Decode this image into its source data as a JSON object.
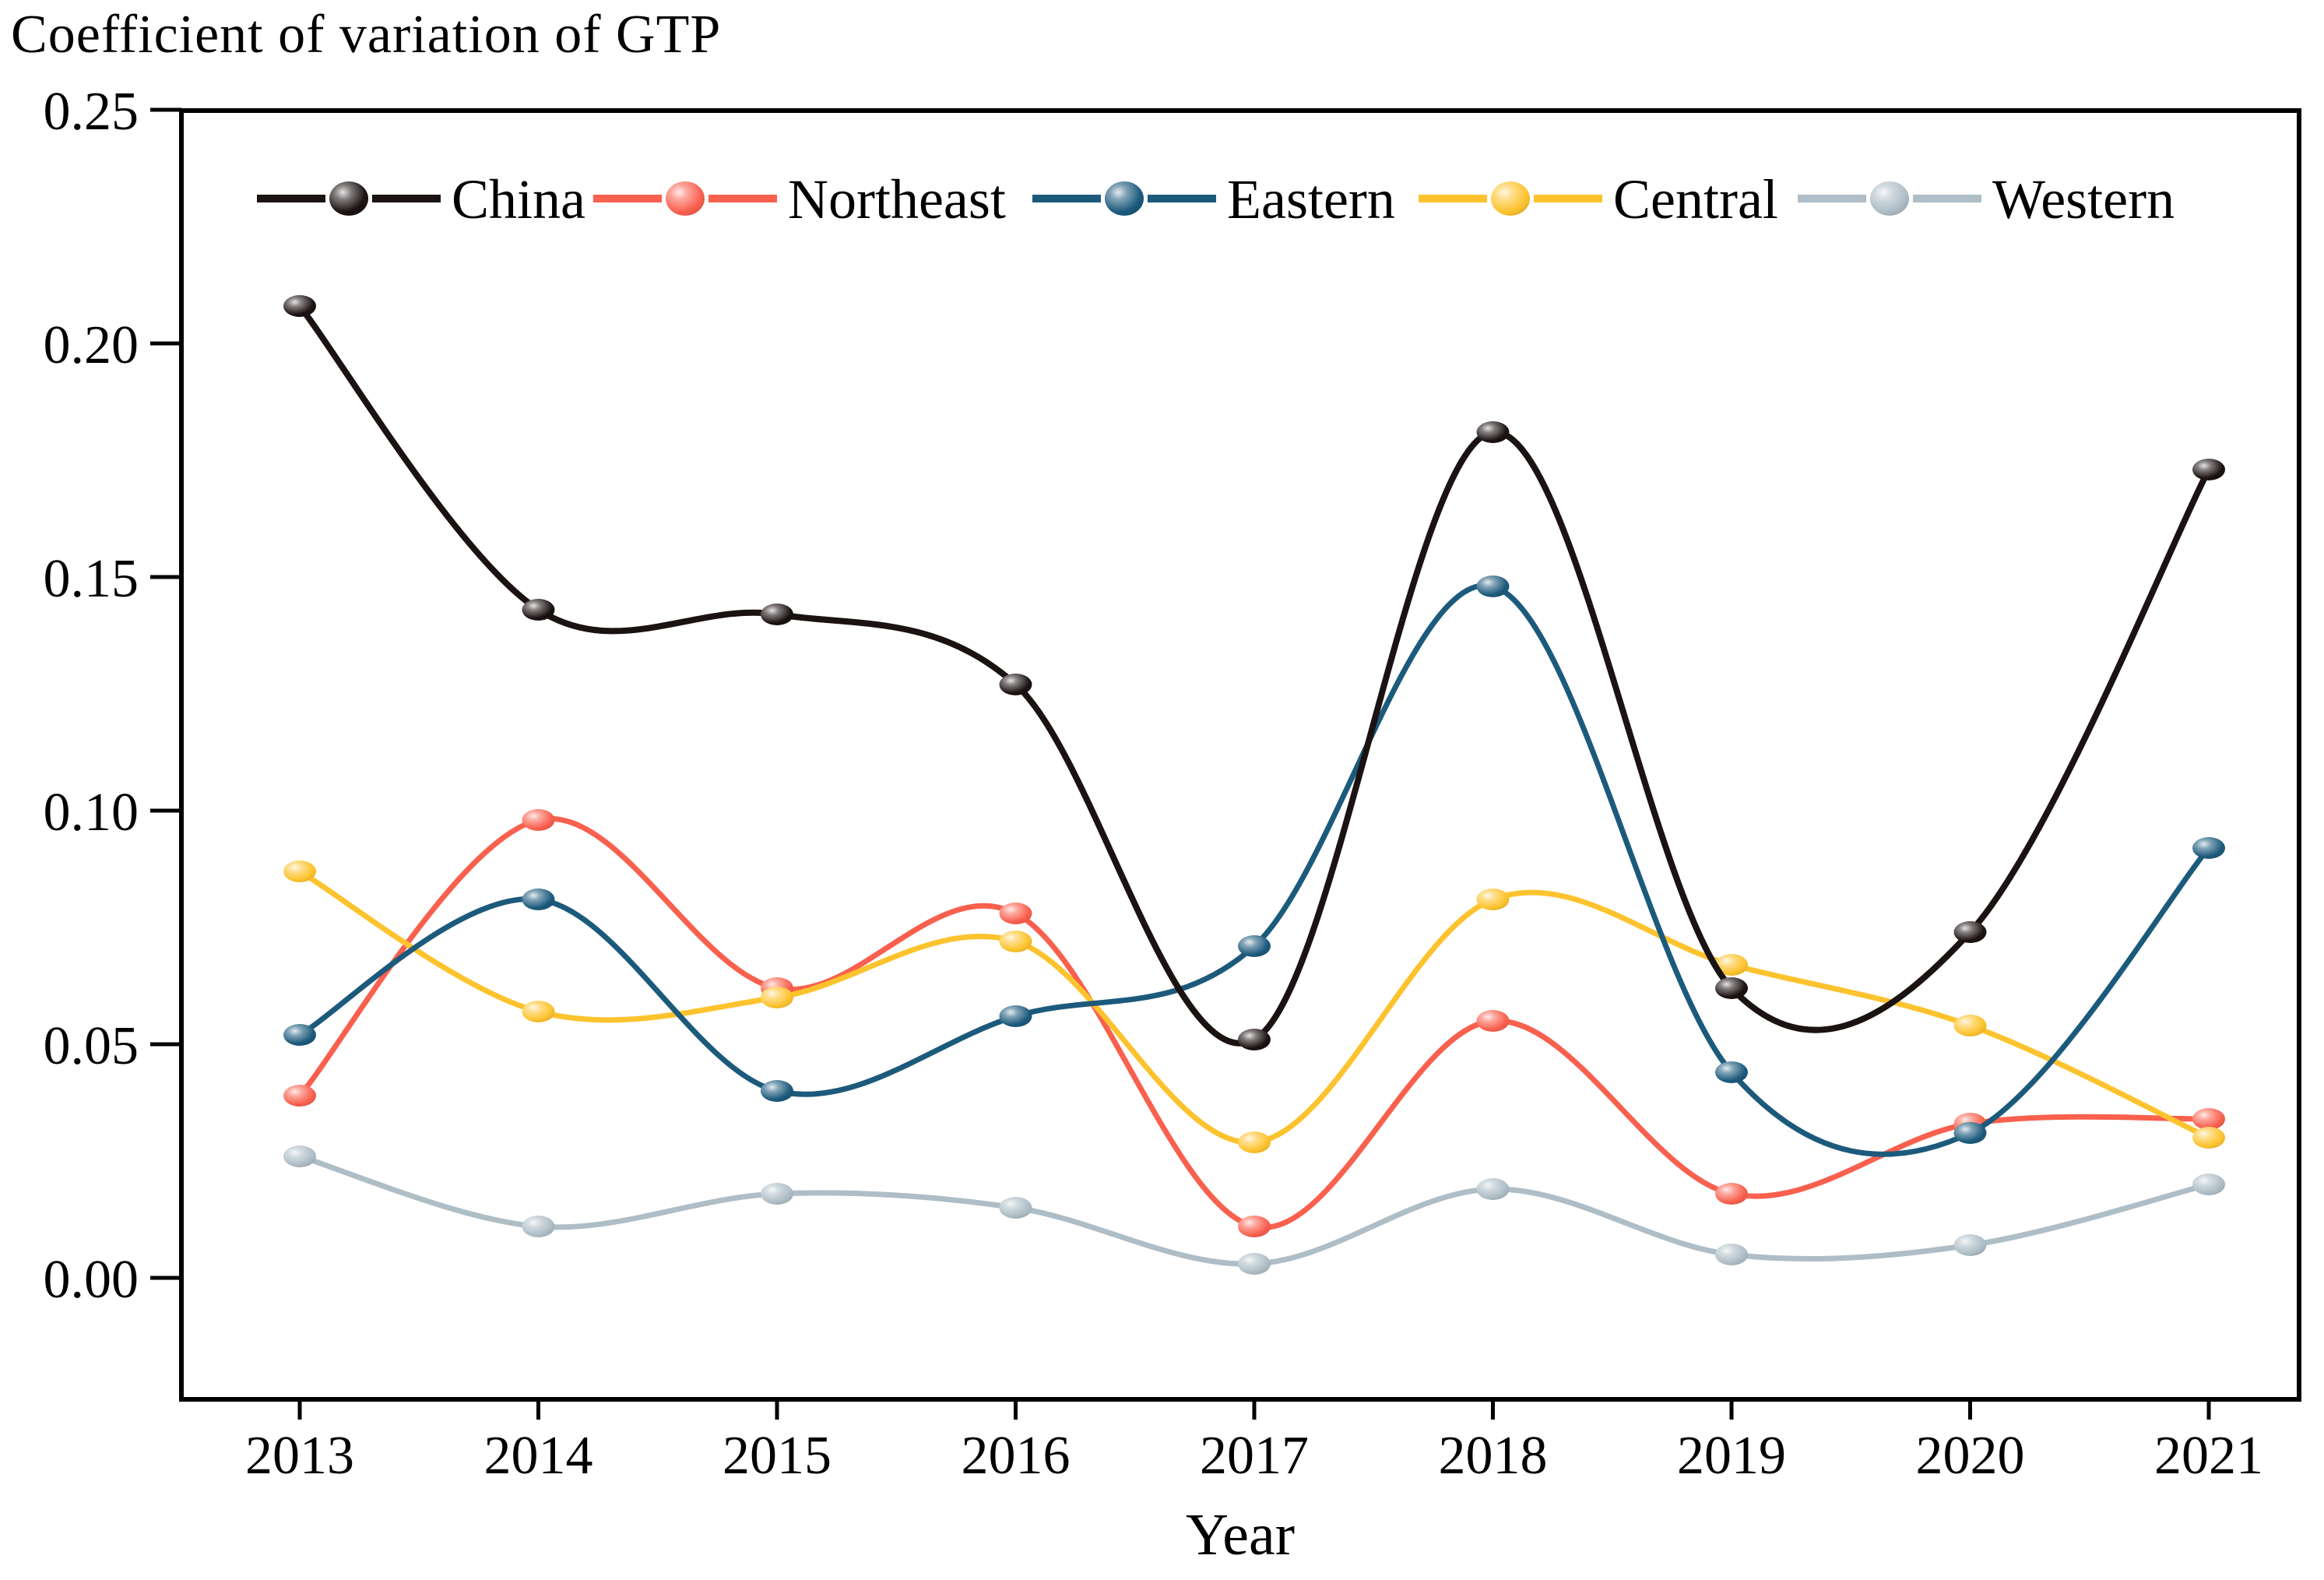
{
  "figure": {
    "background": "#ffffff",
    "frame_color": "#000000"
  },
  "chart_data": {
    "type": "line",
    "title": "Coefficient of variation of GTP",
    "xlabel": "Year",
    "ylabel": "",
    "categories": [
      "2013",
      "2014",
      "2015",
      "2016",
      "2017",
      "2018",
      "2019",
      "2020",
      "2021"
    ],
    "y_ticks": [
      "0.00",
      "0.05",
      "0.10",
      "0.15",
      "0.20",
      "0.25"
    ],
    "y_tick_values": [
      0.0,
      0.05,
      0.1,
      0.15,
      0.2,
      0.25
    ],
    "ylim": [
      -0.026,
      0.25
    ],
    "grid": false,
    "legend_position": "top",
    "marker_style": "3d-ball",
    "line_style": "smooth-spline",
    "series": [
      {
        "name": "China",
        "color": "#1b1212",
        "values": [
          0.208,
          0.143,
          0.142,
          0.127,
          0.051,
          0.181,
          0.062,
          0.074,
          0.173
        ]
      },
      {
        "name": "Northeast",
        "color": "#f9604e",
        "values": [
          0.039,
          0.098,
          0.062,
          0.078,
          0.011,
          0.055,
          0.018,
          0.033,
          0.034
        ]
      },
      {
        "name": "Eastern",
        "color": "#1c5a7c",
        "values": [
          0.052,
          0.081,
          0.04,
          0.056,
          0.071,
          0.148,
          0.044,
          0.031,
          0.092
        ]
      },
      {
        "name": "Central",
        "color": "#fdc32e",
        "values": [
          0.087,
          0.057,
          0.06,
          0.072,
          0.029,
          0.081,
          0.067,
          0.054,
          0.03
        ]
      },
      {
        "name": "Western",
        "color": "#aebdc6",
        "values": [
          0.026,
          0.011,
          0.018,
          0.015,
          0.003,
          0.019,
          0.005,
          0.007,
          0.02
        ]
      }
    ]
  }
}
